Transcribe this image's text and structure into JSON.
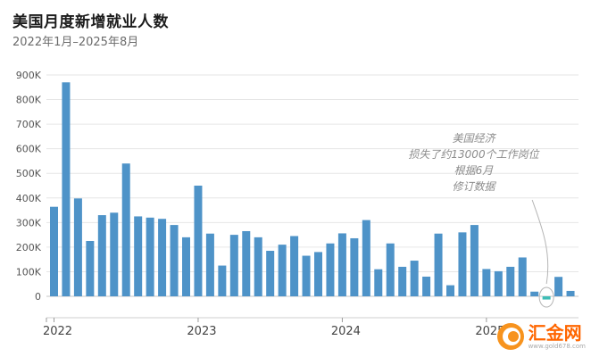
{
  "header": {
    "title": "美国月度新增就业人数",
    "subtitle": "2022年1月–2025年8月"
  },
  "chart_data": {
    "type": "bar",
    "title": "美国月度新增就业人数",
    "subtitle": "2022年1月–2025年8月",
    "unit": "K (千人)",
    "x": [
      "2022-01",
      "2022-02",
      "2022-03",
      "2022-04",
      "2022-05",
      "2022-06",
      "2022-07",
      "2022-08",
      "2022-09",
      "2022-10",
      "2022-11",
      "2022-12",
      "2023-01",
      "2023-02",
      "2023-03",
      "2023-04",
      "2023-05",
      "2023-06",
      "2023-07",
      "2023-08",
      "2023-09",
      "2023-10",
      "2023-11",
      "2023-12",
      "2024-01",
      "2024-02",
      "2024-03",
      "2024-04",
      "2024-05",
      "2024-06",
      "2024-07",
      "2024-08",
      "2024-09",
      "2024-10",
      "2024-11",
      "2024-12",
      "2025-01",
      "2025-02",
      "2025-03",
      "2025-04",
      "2025-05",
      "2025-06",
      "2025-07",
      "2025-08"
    ],
    "values": [
      364,
      870,
      398,
      225,
      330,
      340,
      540,
      325,
      320,
      315,
      290,
      240,
      450,
      255,
      125,
      250,
      265,
      240,
      185,
      210,
      245,
      165,
      180,
      215,
      256,
      236,
      310,
      110,
      215,
      120,
      145,
      80,
      255,
      45,
      260,
      290,
      111,
      102,
      120,
      158,
      19,
      -13,
      79,
      22
    ],
    "ylim": [
      0,
      900
    ],
    "yticks": [
      0,
      100,
      200,
      300,
      400,
      500,
      600,
      700,
      800,
      900
    ],
    "ytick_labels": [
      "0",
      "100K",
      "200K",
      "300K",
      "400K",
      "500K",
      "600K",
      "700K",
      "800K",
      "900K"
    ],
    "xticks": [
      0,
      12,
      24,
      36
    ],
    "xtick_labels": [
      "2022",
      "2023",
      "2024",
      "2025"
    ],
    "grid": true,
    "bar_color": "#4e93c8",
    "highlight_color": "#3fbdb6",
    "highlight_index": 41,
    "annotation": {
      "lines": [
        "美国经济",
        "损失了约13000个工作岗位",
        "根据6月",
        "修订数据"
      ]
    }
  },
  "footer": {
    "brand": "汇金网",
    "brand_sub": "www.gold678.com"
  }
}
